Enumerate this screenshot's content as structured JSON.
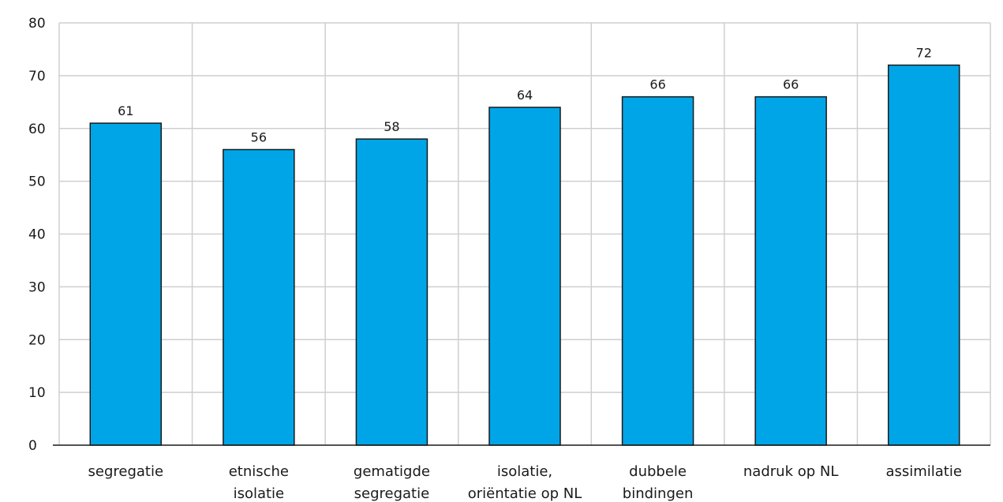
{
  "chart_data": {
    "type": "bar",
    "title": "",
    "xlabel": "",
    "ylabel": "",
    "ylim": [
      0,
      80
    ],
    "yticks": [
      0,
      10,
      20,
      30,
      40,
      50,
      60,
      70,
      80
    ],
    "grid": true,
    "categories": [
      [
        "segregatie"
      ],
      [
        "etnische",
        "isolatie"
      ],
      [
        "gematigde",
        "segregatie"
      ],
      [
        "isolatie,",
        "oriëntatie op NL"
      ],
      [
        "dubbele",
        "bindingen"
      ],
      [
        "nadruk op NL"
      ],
      [
        "assimilatie"
      ]
    ],
    "values": [
      61,
      56,
      58,
      64,
      66,
      66,
      72
    ],
    "bar_color": "#00a5e8",
    "bar_stroke": "#1a1a1a"
  }
}
